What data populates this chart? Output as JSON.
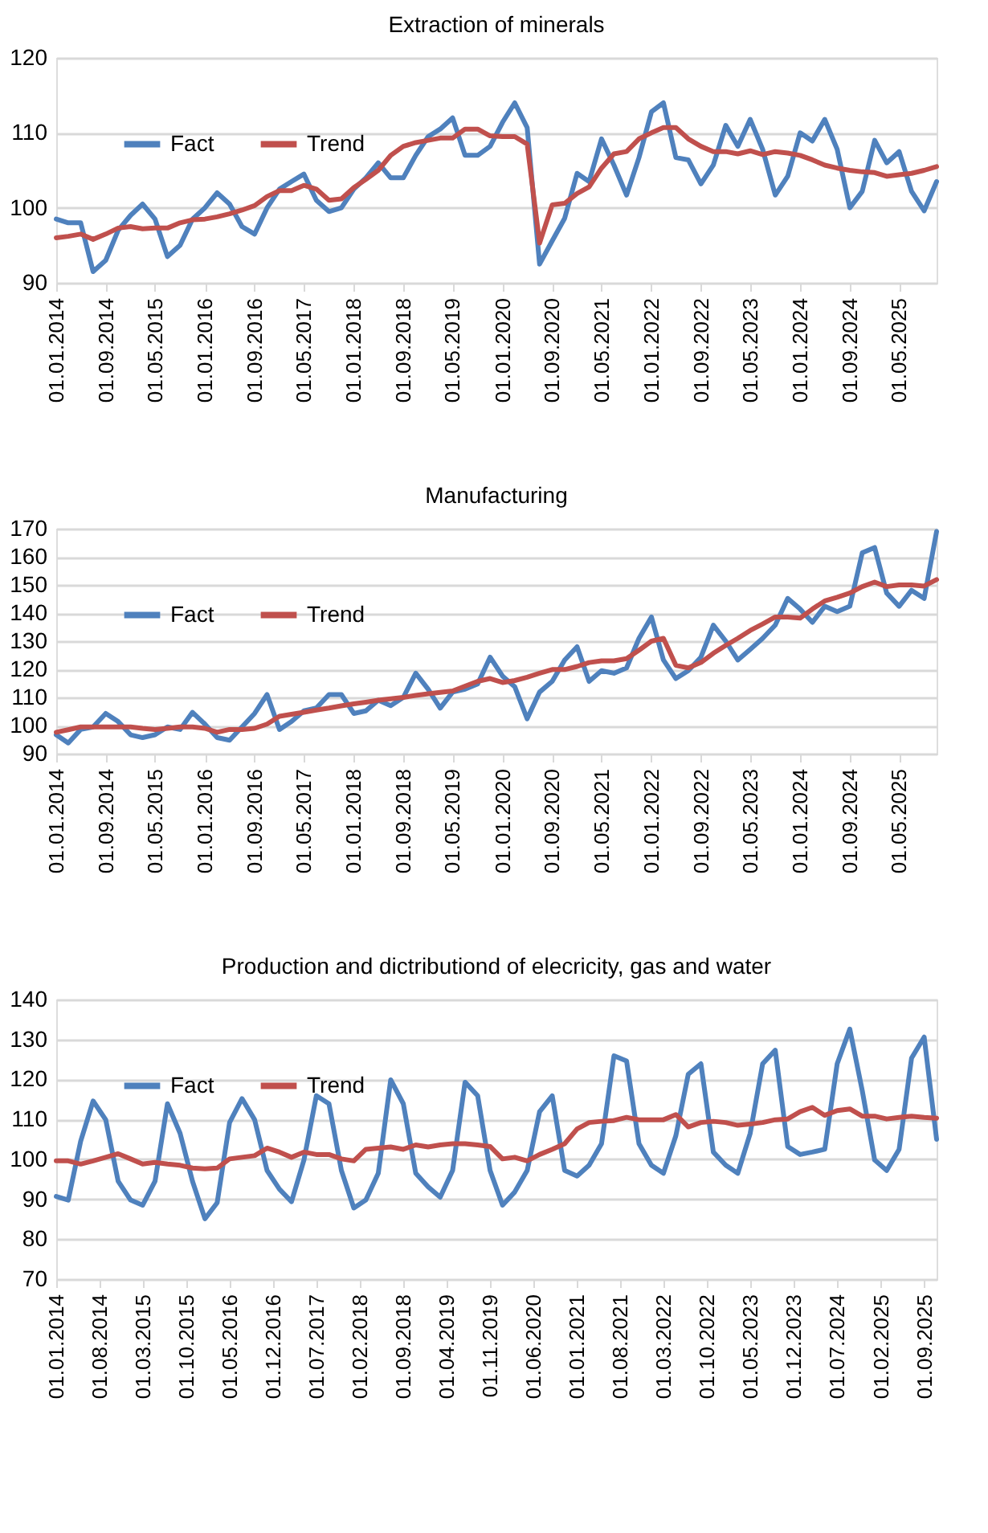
{
  "chart_data": [
    {
      "type": "line",
      "title": "Extraction of minerals",
      "x": [
        "2014-01",
        "2014-03",
        "2014-05",
        "2014-07",
        "2014-09",
        "2014-11",
        "2015-01",
        "2015-03",
        "2015-05",
        "2015-07",
        "2015-09",
        "2015-11",
        "2016-01",
        "2016-03",
        "2016-05",
        "2016-07",
        "2016-09",
        "2016-11",
        "2017-01",
        "2017-03",
        "2017-05",
        "2017-07",
        "2017-09",
        "2017-11",
        "2018-01",
        "2018-03",
        "2018-05",
        "2018-07",
        "2018-09",
        "2018-11",
        "2019-01",
        "2019-03",
        "2019-05",
        "2019-07",
        "2019-09",
        "2019-11",
        "2020-01",
        "2020-03",
        "2020-05",
        "2020-07",
        "2020-09",
        "2020-11",
        "2021-01",
        "2021-03",
        "2021-05",
        "2021-07",
        "2021-09",
        "2021-11",
        "2022-01",
        "2022-03",
        "2022-05",
        "2022-07",
        "2022-09",
        "2022-11",
        "2023-01",
        "2023-03",
        "2023-05",
        "2023-07",
        "2023-09",
        "2023-11",
        "2024-01",
        "2024-03",
        "2024-05",
        "2024-07",
        "2024-09",
        "2024-11",
        "2025-01",
        "2025-03",
        "2025-05",
        "2025-07",
        "2025-09",
        "2025-11"
      ],
      "series": [
        {
          "name": "Fact",
          "color": "#4f81bd",
          "values": [
            98.5,
            98,
            98,
            91.5,
            93,
            97,
            99,
            100.5,
            98.5,
            93.5,
            95,
            98.5,
            100,
            102,
            100.5,
            97.5,
            96.5,
            100,
            102.5,
            103.5,
            104.5,
            101,
            99.5,
            100,
            102.5,
            104,
            106,
            104,
            104,
            107,
            109.5,
            110.5,
            112,
            107,
            107,
            108.2,
            111.4,
            114,
            110.7,
            92.5,
            95.6,
            98.6,
            104.6,
            103.5,
            109.2,
            105.7,
            101.7,
            106.7,
            112.8,
            114,
            106.7,
            106.4,
            103.2,
            105.7,
            111,
            108.2,
            111.8,
            107.8,
            101.7,
            104.2,
            110,
            108.9,
            111.8,
            107.8,
            100,
            102.2,
            109,
            106,
            107.5,
            102.2,
            99.6,
            103.5
          ]
        },
        {
          "name": "Trend",
          "color": "#c0504d",
          "values": [
            96,
            96.2,
            96.5,
            95.8,
            96.5,
            97.3,
            97.5,
            97.2,
            97.3,
            97.3,
            98,
            98.4,
            98.5,
            98.8,
            99.2,
            99.7,
            100.3,
            101.5,
            102.3,
            102.3,
            103,
            102.5,
            101,
            101.2,
            102.7,
            103.8,
            105,
            107,
            108.2,
            108.7,
            109,
            109.3,
            109.3,
            110.5,
            110.5,
            109.6,
            109.5,
            109.5,
            108.5,
            95.3,
            100.4,
            100.6,
            101.9,
            102.8,
            105.3,
            107.2,
            107.5,
            109.2,
            110,
            110.7,
            110.7,
            109.2,
            108.2,
            107.5,
            107.5,
            107.2,
            107.6,
            107.1,
            107.5,
            107.3,
            107,
            106.4,
            105.7,
            105.3,
            105,
            104.8,
            104.7,
            104.2,
            104.4,
            104.6,
            105,
            105.5
          ]
        }
      ],
      "xlim": [
        "2014-01-01",
        "2025-11-01"
      ],
      "xticks": [
        {
          "value": "2014-01-01",
          "label": "01.01.2014"
        },
        {
          "value": "2014-09-01",
          "label": "01.09.2014"
        },
        {
          "value": "2015-05-01",
          "label": "01.05.2015"
        },
        {
          "value": "2016-01-01",
          "label": "01.01.2016"
        },
        {
          "value": "2016-09-01",
          "label": "01.09.2016"
        },
        {
          "value": "2017-05-01",
          "label": "01.05.2017"
        },
        {
          "value": "2018-01-01",
          "label": "01.01.2018"
        },
        {
          "value": "2018-09-01",
          "label": "01.09.2018"
        },
        {
          "value": "2019-05-01",
          "label": "01.05.2019"
        },
        {
          "value": "2020-01-01",
          "label": "01.01.2020"
        },
        {
          "value": "2020-09-01",
          "label": "01.09.2020"
        },
        {
          "value": "2021-05-01",
          "label": "01.05.2021"
        },
        {
          "value": "2022-01-01",
          "label": "01.01.2022"
        },
        {
          "value": "2022-09-01",
          "label": "01.09.2022"
        },
        {
          "value": "2023-05-01",
          "label": "01.05.2023"
        },
        {
          "value": "2024-01-01",
          "label": "01.01.2024"
        },
        {
          "value": "2024-09-01",
          "label": "01.09.2024"
        },
        {
          "value": "2025-05-01",
          "label": "01.05.2025"
        }
      ],
      "ylim": [
        90,
        120
      ],
      "yticks": [
        90,
        100,
        110,
        120
      ],
      "grid": "y",
      "legend": "top left"
    },
    {
      "type": "line",
      "title": "Manufacturing",
      "x": [
        "2014-01",
        "2014-03",
        "2014-05",
        "2014-07",
        "2014-09",
        "2014-11",
        "2015-01",
        "2015-03",
        "2015-05",
        "2015-07",
        "2015-09",
        "2015-11",
        "2016-01",
        "2016-03",
        "2016-05",
        "2016-07",
        "2016-09",
        "2016-11",
        "2017-01",
        "2017-03",
        "2017-05",
        "2017-07",
        "2017-09",
        "2017-11",
        "2018-01",
        "2018-03",
        "2018-05",
        "2018-07",
        "2018-09",
        "2018-11",
        "2019-01",
        "2019-03",
        "2019-05",
        "2019-07",
        "2019-09",
        "2019-11",
        "2020-01",
        "2020-03",
        "2020-05",
        "2020-07",
        "2020-09",
        "2020-11",
        "2021-01",
        "2021-03",
        "2021-05",
        "2021-07",
        "2021-09",
        "2021-11",
        "2022-01",
        "2022-03",
        "2022-05",
        "2022-07",
        "2022-09",
        "2022-11",
        "2023-01",
        "2023-03",
        "2023-05",
        "2023-07",
        "2023-09",
        "2023-11",
        "2024-01",
        "2024-03",
        "2024-05",
        "2024-07",
        "2024-09",
        "2024-11",
        "2025-01",
        "2025-03",
        "2025-05",
        "2025-07",
        "2025-09",
        "2025-11"
      ],
      "series": [
        {
          "name": "Fact",
          "color": "#4f81bd",
          "values": [
            96.7,
            93.8,
            98.6,
            99.5,
            104.3,
            101.4,
            96.7,
            95.7,
            96.7,
            99.5,
            98.6,
            104.7,
            100.5,
            95.7,
            94.8,
            99.5,
            104.3,
            111,
            98.6,
            101.4,
            105.2,
            106.2,
            111,
            111,
            104.3,
            105.2,
            109,
            107.1,
            110,
            118.6,
            112.9,
            106.2,
            111.9,
            112.9,
            114.8,
            124.3,
            117.6,
            113.8,
            102.4,
            111.9,
            115.7,
            123.3,
            128,
            115.7,
            119.5,
            118.6,
            120.5,
            131,
            138.6,
            123.3,
            116.7,
            119.5,
            124.3,
            135.7,
            130,
            123.3,
            127.1,
            131,
            135.7,
            145.2,
            141.4,
            136.7,
            142.4,
            140.5,
            142.4,
            161.4,
            163.3,
            147.1,
            142.4,
            148.1,
            145.2,
            169
          ]
        },
        {
          "name": "Trend",
          "color": "#c0504d",
          "values": [
            97.6,
            98.5,
            99.5,
            99.5,
            99.5,
            99.5,
            99.5,
            99,
            98.6,
            99,
            99.5,
            99.5,
            99,
            97.6,
            98.6,
            98.6,
            99,
            100.5,
            103.3,
            104,
            104.7,
            105.5,
            106.2,
            107,
            107.7,
            108.3,
            109,
            109.5,
            110,
            110.7,
            111.3,
            111.8,
            112.3,
            114,
            115.7,
            116.7,
            115.3,
            116,
            117.2,
            118.6,
            119.9,
            119.9,
            121,
            122.4,
            123,
            123,
            123.8,
            126.8,
            130,
            131,
            121.4,
            120.5,
            122.4,
            125.7,
            128.5,
            131,
            133.8,
            136.1,
            138.6,
            138.6,
            138.2,
            141.4,
            144.3,
            145.6,
            147.1,
            149.4,
            151,
            149.4,
            150,
            150,
            149.6,
            151.9
          ]
        }
      ],
      "xlim": [
        "2014-01-01",
        "2025-11-01"
      ],
      "xticks": [
        {
          "value": "2014-01-01",
          "label": "01.01.2014"
        },
        {
          "value": "2014-09-01",
          "label": "01.09.2014"
        },
        {
          "value": "2015-05-01",
          "label": "01.05.2015"
        },
        {
          "value": "2016-01-01",
          "label": "01.01.2016"
        },
        {
          "value": "2016-09-01",
          "label": "01.09.2016"
        },
        {
          "value": "2017-05-01",
          "label": "01.05.2017"
        },
        {
          "value": "2018-01-01",
          "label": "01.01.2018"
        },
        {
          "value": "2018-09-01",
          "label": "01.09.2018"
        },
        {
          "value": "2019-05-01",
          "label": "01.05.2019"
        },
        {
          "value": "2020-01-01",
          "label": "01.01.2020"
        },
        {
          "value": "2020-09-01",
          "label": "01.09.2020"
        },
        {
          "value": "2021-05-01",
          "label": "01.05.2021"
        },
        {
          "value": "2022-01-01",
          "label": "01.01.2022"
        },
        {
          "value": "2022-09-01",
          "label": "01.09.2022"
        },
        {
          "value": "2023-05-01",
          "label": "01.05.2023"
        },
        {
          "value": "2024-01-01",
          "label": "01.01.2024"
        },
        {
          "value": "2024-09-01",
          "label": "01.09.2024"
        },
        {
          "value": "2025-05-01",
          "label": "01.05.2025"
        }
      ],
      "ylim": [
        90,
        170
      ],
      "yticks": [
        90,
        100,
        110,
        120,
        130,
        140,
        150,
        160,
        170
      ],
      "grid": "y",
      "legend": "top left"
    },
    {
      "type": "line",
      "title": "Production and dictributiond of elecricity, gas and water",
      "x": [
        "2014-01",
        "2014-03",
        "2014-05",
        "2014-07",
        "2014-09",
        "2014-11",
        "2015-01",
        "2015-03",
        "2015-05",
        "2015-07",
        "2015-09",
        "2015-11",
        "2016-01",
        "2016-03",
        "2016-05",
        "2016-07",
        "2016-09",
        "2016-11",
        "2017-01",
        "2017-03",
        "2017-05",
        "2017-07",
        "2017-09",
        "2017-11",
        "2018-01",
        "2018-03",
        "2018-05",
        "2018-07",
        "2018-09",
        "2018-11",
        "2019-01",
        "2019-03",
        "2019-05",
        "2019-07",
        "2019-09",
        "2019-11",
        "2020-01",
        "2020-03",
        "2020-05",
        "2020-07",
        "2020-09",
        "2020-11",
        "2021-01",
        "2021-03",
        "2021-05",
        "2021-07",
        "2021-09",
        "2021-11",
        "2022-01",
        "2022-03",
        "2022-05",
        "2022-07",
        "2022-09",
        "2022-11",
        "2023-01",
        "2023-03",
        "2023-05",
        "2023-07",
        "2023-09",
        "2023-11",
        "2024-01",
        "2024-03",
        "2024-05",
        "2024-07",
        "2024-09",
        "2024-11",
        "2025-01",
        "2025-03",
        "2025-05",
        "2025-07",
        "2025-09",
        "2025-11"
      ],
      "series": [
        {
          "name": "Fact",
          "color": "#4f81bd",
          "values": [
            90.7,
            89.8,
            104.5,
            114.6,
            109.9,
            94.5,
            89.8,
            88.5,
            94.5,
            113.9,
            106.5,
            94.5,
            85.1,
            89.1,
            109.2,
            115.2,
            109.9,
            97.2,
            92.5,
            89.4,
            99.8,
            115.9,
            113.9,
            97.2,
            87.8,
            89.8,
            96.5,
            119.9,
            113.9,
            96.5,
            93.1,
            90.5,
            97.2,
            119.3,
            115.9,
            97.2,
            88.5,
            91.8,
            97.2,
            111.9,
            115.9,
            97.2,
            95.8,
            98.5,
            103.9,
            125.9,
            124.6,
            103.9,
            98.5,
            96.5,
            105.9,
            121.3,
            123.9,
            101.8,
            98.5,
            96.5,
            106.5,
            123.9,
            127.3,
            103.2,
            101.2,
            101.8,
            102.5,
            123.9,
            132.6,
            117.2,
            99.8,
            97.2,
            102.5,
            125.3,
            130.6,
            105
          ]
        },
        {
          "name": "Trend",
          "color": "#c0504d",
          "values": [
            99.6,
            99.6,
            98.8,
            99.6,
            100.5,
            101.4,
            100.1,
            98.8,
            99.2,
            98.8,
            98.5,
            97.8,
            97.6,
            97.8,
            100.1,
            100.5,
            100.9,
            102.8,
            101.8,
            100.5,
            101.8,
            101.2,
            101.2,
            100.1,
            99.6,
            102.5,
            102.8,
            103.1,
            102.5,
            103.6,
            103.1,
            103.6,
            103.9,
            103.9,
            103.6,
            103.2,
            100.1,
            100.5,
            99.6,
            101.2,
            102.5,
            103.9,
            107.6,
            109.2,
            109.5,
            109.7,
            110.5,
            109.9,
            109.9,
            109.9,
            111.2,
            108.1,
            109.2,
            109.5,
            109.2,
            108.5,
            108.8,
            109.2,
            109.9,
            110.1,
            111.9,
            113,
            111,
            112.2,
            112.6,
            110.8,
            110.8,
            110.1,
            110.5,
            110.8,
            110.5,
            110.3
          ]
        }
      ],
      "xlim": [
        "2014-01-01",
        "2025-11-01"
      ],
      "xticks": [
        {
          "value": "2014-01-01",
          "label": "01.01.2014"
        },
        {
          "value": "2014-08-01",
          "label": "01.08.2014"
        },
        {
          "value": "2015-03-01",
          "label": "01.03.2015"
        },
        {
          "value": "2015-10-01",
          "label": "01.10.2015"
        },
        {
          "value": "2016-05-01",
          "label": "01.05.2016"
        },
        {
          "value": "2016-12-01",
          "label": "01.12.2016"
        },
        {
          "value": "2017-07-01",
          "label": "01.07.2017"
        },
        {
          "value": "2018-02-01",
          "label": "01.02.2018"
        },
        {
          "value": "2018-09-01",
          "label": "01.09.2018"
        },
        {
          "value": "2019-04-01",
          "label": "01.04.2019"
        },
        {
          "value": "2019-11-01",
          "label": "01.11.2019"
        },
        {
          "value": "2020-06-01",
          "label": "01.06.2020"
        },
        {
          "value": "2021-01-01",
          "label": "01.01.2021"
        },
        {
          "value": "2021-08-01",
          "label": "01.08.2021"
        },
        {
          "value": "2022-03-01",
          "label": "01.03.2022"
        },
        {
          "value": "2022-10-01",
          "label": "01.10.2022"
        },
        {
          "value": "2023-05-01",
          "label": "01.05.2023"
        },
        {
          "value": "2023-12-01",
          "label": "01.12.2023"
        },
        {
          "value": "2024-07-01",
          "label": "01.07.2024"
        },
        {
          "value": "2025-02-01",
          "label": "01.02.2025"
        },
        {
          "value": "2025-09-01",
          "label": "01.09.2025"
        }
      ],
      "ylim": [
        70,
        140
      ],
      "yticks": [
        70,
        80,
        90,
        100,
        110,
        120,
        130,
        140
      ],
      "grid": "y",
      "legend": "top left"
    }
  ]
}
